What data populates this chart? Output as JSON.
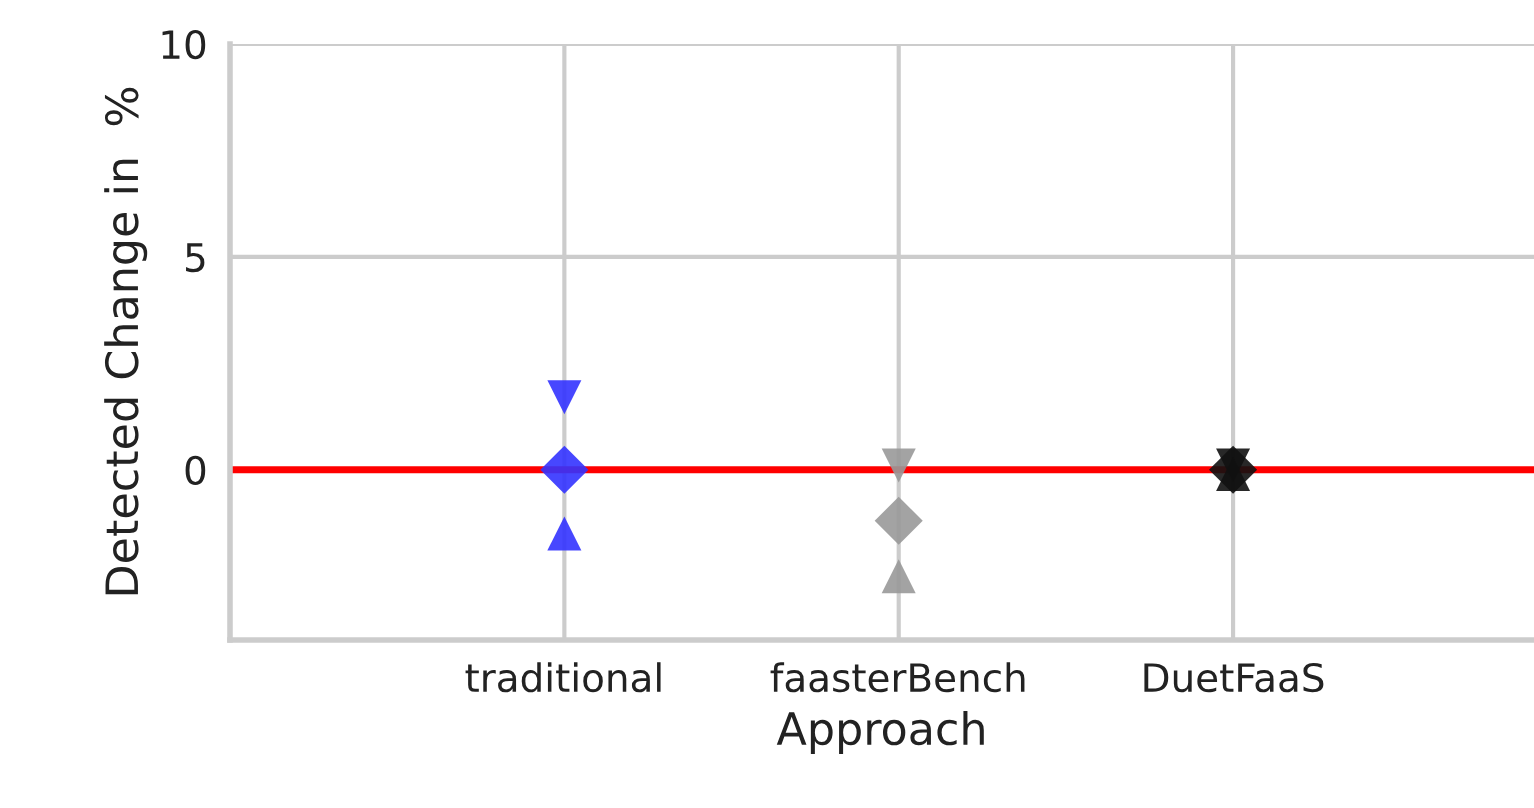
{
  "chart_data": {
    "type": "scatter",
    "xlabel": "Approach",
    "ylabel": "Detected Change in  %",
    "categories": [
      "traditional",
      "faasterBench",
      "DuetFaaS"
    ],
    "series": [
      {
        "marker": "triangle_down",
        "colors": [
          "#3333ff",
          "#999999",
          "#111111"
        ],
        "values": [
          1.7,
          0.1,
          0.1
        ]
      },
      {
        "marker": "diamond",
        "colors": [
          "#3333ff",
          "#999999",
          "#111111"
        ],
        "values": [
          0,
          -1.2,
          0
        ]
      },
      {
        "marker": "triangle",
        "colors": [
          "#3333ff",
          "#999999",
          "#111111"
        ],
        "values": [
          -1.5,
          -2.5,
          -0.1
        ]
      }
    ],
    "ylim": [
      -4,
      10
    ],
    "yticks": [
      0,
      5,
      10
    ],
    "grid": true,
    "ref_lines": [
      {
        "axis": "y",
        "value": 0,
        "color": "#ff0000"
      }
    ]
  }
}
